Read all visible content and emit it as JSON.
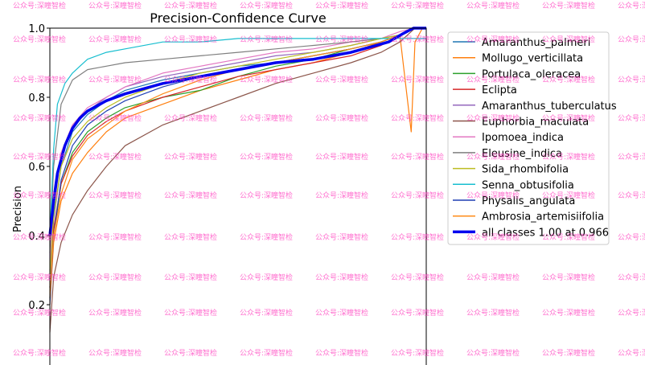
{
  "chart_data": {
    "type": "line",
    "title": "Precision-Confidence Curve",
    "xlabel": "",
    "ylabel": "Precision",
    "ylim": [
      0.0,
      1.0
    ],
    "xlim": [
      0.0,
      1.0
    ],
    "yticks": [
      "1.0",
      "0.8",
      "0.6",
      "0.4",
      "0.2"
    ],
    "legend_position": "right",
    "series": [
      {
        "name": "Amaranthus_palmeri",
        "color": "#1f77b4",
        "x": [
          0.0,
          0.01,
          0.03,
          0.06,
          0.1,
          0.15,
          0.2,
          0.3,
          0.4,
          0.5,
          0.6,
          0.7,
          0.8,
          0.88,
          0.93,
          0.97,
          1.0
        ],
        "y": [
          0.25,
          0.45,
          0.6,
          0.7,
          0.75,
          0.79,
          0.82,
          0.85,
          0.87,
          0.89,
          0.9,
          0.92,
          0.94,
          0.96,
          0.98,
          1.0,
          1.0
        ]
      },
      {
        "name": "Mollugo_verticillata",
        "color": "#ff7f0e",
        "x": [
          0.0,
          0.01,
          0.03,
          0.06,
          0.1,
          0.15,
          0.2,
          0.3,
          0.4,
          0.5,
          0.6,
          0.7,
          0.8,
          0.88,
          0.93,
          0.96,
          0.97,
          0.99,
          1.0
        ],
        "y": [
          0.2,
          0.38,
          0.5,
          0.58,
          0.64,
          0.7,
          0.74,
          0.78,
          0.82,
          0.85,
          0.88,
          0.9,
          0.93,
          0.96,
          0.98,
          0.7,
          0.96,
          1.0,
          1.0
        ]
      },
      {
        "name": "Portulaca_oleracea",
        "color": "#2ca02c",
        "x": [
          0.0,
          0.01,
          0.03,
          0.06,
          0.1,
          0.15,
          0.2,
          0.3,
          0.4,
          0.5,
          0.6,
          0.7,
          0.8,
          0.88,
          0.93,
          0.97,
          1.0
        ],
        "y": [
          0.22,
          0.4,
          0.55,
          0.64,
          0.7,
          0.74,
          0.77,
          0.8,
          0.82,
          0.86,
          0.89,
          0.91,
          0.94,
          0.96,
          0.98,
          1.0,
          1.0
        ]
      },
      {
        "name": "Eclipta",
        "color": "#d62728",
        "x": [
          0.0,
          0.01,
          0.03,
          0.06,
          0.1,
          0.15,
          0.2,
          0.3,
          0.4,
          0.5,
          0.6,
          0.7,
          0.8,
          0.88,
          0.93,
          0.97,
          1.0
        ],
        "y": [
          0.25,
          0.42,
          0.55,
          0.63,
          0.69,
          0.73,
          0.76,
          0.8,
          0.83,
          0.86,
          0.88,
          0.9,
          0.92,
          0.95,
          0.98,
          1.0,
          1.0
        ]
      },
      {
        "name": "Amaranthus_tuberculatus",
        "color": "#9467bd",
        "x": [
          0.0,
          0.01,
          0.03,
          0.06,
          0.1,
          0.15,
          0.2,
          0.3,
          0.4,
          0.5,
          0.6,
          0.7,
          0.8,
          0.88,
          0.93,
          0.97,
          1.0
        ],
        "y": [
          0.25,
          0.48,
          0.63,
          0.71,
          0.76,
          0.8,
          0.83,
          0.86,
          0.88,
          0.9,
          0.92,
          0.93,
          0.95,
          0.97,
          0.98,
          1.0,
          1.0
        ]
      },
      {
        "name": "Euphorbia_maculata",
        "color": "#8c564b",
        "x": [
          0.0,
          0.01,
          0.03,
          0.06,
          0.1,
          0.15,
          0.2,
          0.3,
          0.4,
          0.5,
          0.6,
          0.7,
          0.8,
          0.88,
          0.93,
          0.97,
          1.0
        ],
        "y": [
          0.12,
          0.28,
          0.38,
          0.46,
          0.53,
          0.6,
          0.66,
          0.72,
          0.76,
          0.8,
          0.84,
          0.87,
          0.9,
          0.93,
          0.96,
          1.0,
          1.0
        ]
      },
      {
        "name": "Ipomoea_indica",
        "color": "#e377c2",
        "x": [
          0.0,
          0.01,
          0.03,
          0.06,
          0.1,
          0.15,
          0.2,
          0.3,
          0.4,
          0.5,
          0.6,
          0.7,
          0.8,
          0.88,
          0.93,
          0.97,
          1.0
        ],
        "y": [
          0.3,
          0.5,
          0.64,
          0.72,
          0.77,
          0.8,
          0.83,
          0.87,
          0.89,
          0.91,
          0.93,
          0.94,
          0.96,
          0.97,
          0.99,
          1.0,
          1.0
        ]
      },
      {
        "name": "Eleusine_indica",
        "color": "#7f7f7f",
        "x": [
          0.0,
          0.01,
          0.03,
          0.06,
          0.1,
          0.15,
          0.2,
          0.3,
          0.4,
          0.5,
          0.6,
          0.7,
          0.8,
          0.88,
          0.93,
          0.97,
          1.0
        ],
        "y": [
          0.35,
          0.6,
          0.78,
          0.85,
          0.88,
          0.89,
          0.9,
          0.91,
          0.92,
          0.93,
          0.94,
          0.95,
          0.96,
          0.97,
          0.98,
          1.0,
          1.0
        ]
      },
      {
        "name": "Sida_rhombifolia",
        "color": "#bcbd22",
        "x": [
          0.0,
          0.01,
          0.03,
          0.06,
          0.1,
          0.15,
          0.2,
          0.3,
          0.4,
          0.5,
          0.6,
          0.7,
          0.8,
          0.88,
          0.93,
          0.97,
          1.0
        ],
        "y": [
          0.28,
          0.46,
          0.6,
          0.68,
          0.73,
          0.77,
          0.8,
          0.84,
          0.87,
          0.89,
          0.91,
          0.93,
          0.95,
          0.97,
          0.98,
          1.0,
          1.0
        ]
      },
      {
        "name": "Senna_obtusifolia",
        "color": "#17becf",
        "x": [
          0.0,
          0.01,
          0.02,
          0.04,
          0.06,
          0.08,
          0.1,
          0.15,
          0.2,
          0.3,
          0.4,
          0.5,
          0.6,
          0.7,
          0.8,
          0.9,
          1.0
        ],
        "y": [
          0.4,
          0.65,
          0.78,
          0.84,
          0.87,
          0.89,
          0.91,
          0.93,
          0.94,
          0.96,
          0.96,
          0.97,
          0.97,
          0.97,
          0.97,
          0.97,
          0.97
        ]
      },
      {
        "name": "Physalis_angulata",
        "color": "#1f3fb4",
        "x": [
          0.0,
          0.01,
          0.03,
          0.06,
          0.1,
          0.15,
          0.2,
          0.3,
          0.4,
          0.5,
          0.6,
          0.7,
          0.8,
          0.88,
          0.93,
          0.97,
          1.0
        ],
        "y": [
          0.2,
          0.4,
          0.56,
          0.66,
          0.72,
          0.76,
          0.79,
          0.83,
          0.86,
          0.88,
          0.9,
          0.92,
          0.94,
          0.96,
          0.98,
          1.0,
          1.0
        ]
      },
      {
        "name": "Ambrosia_artemisiifolia",
        "color": "#ff8c1a",
        "x": [
          0.0,
          0.01,
          0.03,
          0.06,
          0.1,
          0.15,
          0.2,
          0.3,
          0.4,
          0.5,
          0.6,
          0.7,
          0.8,
          0.88,
          0.93,
          0.97,
          1.0
        ],
        "y": [
          0.22,
          0.4,
          0.52,
          0.62,
          0.68,
          0.72,
          0.76,
          0.81,
          0.85,
          0.88,
          0.9,
          0.92,
          0.94,
          0.96,
          0.98,
          1.0,
          1.0
        ]
      },
      {
        "name": "all classes 1.00 at 0.966",
        "color": "#0000ee",
        "bold": true,
        "x": [
          0.0,
          0.01,
          0.02,
          0.04,
          0.06,
          0.08,
          0.1,
          0.15,
          0.2,
          0.3,
          0.4,
          0.5,
          0.6,
          0.7,
          0.8,
          0.85,
          0.9,
          0.94,
          0.966,
          1.0
        ],
        "y": [
          0.4,
          0.5,
          0.58,
          0.66,
          0.71,
          0.74,
          0.76,
          0.79,
          0.81,
          0.84,
          0.86,
          0.88,
          0.9,
          0.91,
          0.93,
          0.945,
          0.96,
          0.985,
          1.0,
          1.0
        ]
      }
    ]
  },
  "watermark": {
    "text": "公众号:深瞳智检"
  }
}
